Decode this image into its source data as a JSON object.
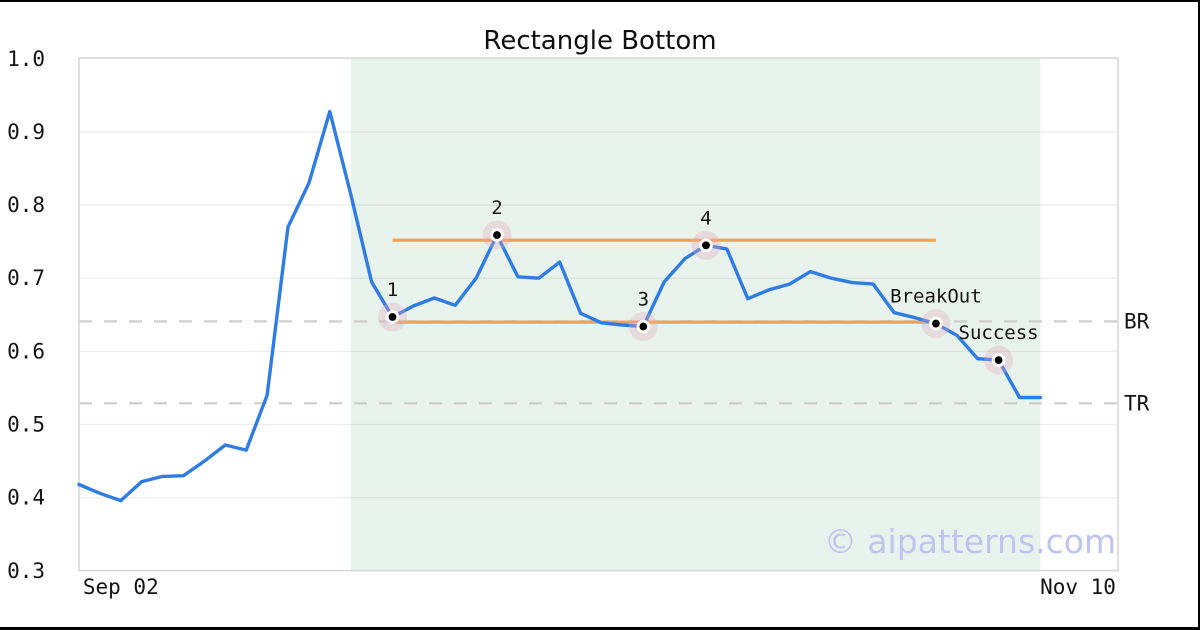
{
  "title": "Rectangle Bottom",
  "watermark": "© aipatterns.com",
  "chart_data": {
    "type": "line",
    "title": "Rectangle Bottom",
    "grid": true,
    "legend": false,
    "y_axis": {
      "min": 0.3,
      "max": 1.0,
      "ticks": [
        {
          "label": "1.0",
          "value": 1.0
        },
        {
          "label": "0.9",
          "value": 0.9
        },
        {
          "label": "0.8",
          "value": 0.8
        },
        {
          "label": "0.7",
          "value": 0.7
        },
        {
          "label": "0.6",
          "value": 0.6
        },
        {
          "label": "0.5",
          "value": 0.5
        },
        {
          "label": "0.4",
          "value": 0.4
        },
        {
          "label": "0.3",
          "value": 0.3
        }
      ]
    },
    "x_axis": {
      "ticks": [
        {
          "label": "Sep 02",
          "index": 2
        },
        {
          "label": "Nov 10",
          "index": 47.8
        }
      ]
    },
    "series": [
      {
        "name": "price",
        "values": [
          0.418,
          0.406,
          0.396,
          0.422,
          0.429,
          0.43,
          0.45,
          0.472,
          0.465,
          0.54,
          0.77,
          0.83,
          0.928,
          0.815,
          0.695,
          0.647,
          0.662,
          0.673,
          0.663,
          0.7,
          0.759,
          0.702,
          0.7,
          0.722,
          0.652,
          0.639,
          0.636,
          0.634,
          0.695,
          0.727,
          0.745,
          0.74,
          0.672,
          0.684,
          0.692,
          0.709,
          0.7,
          0.694,
          0.692,
          0.653,
          0.646,
          0.638,
          0.622,
          0.59,
          0.588,
          0.537,
          0.537
        ]
      }
    ],
    "markers": [
      {
        "label": "1",
        "index": 15,
        "value": 0.647
      },
      {
        "label": "2",
        "index": 20,
        "value": 0.759
      },
      {
        "label": "3",
        "index": 27,
        "value": 0.634
      },
      {
        "label": "4",
        "index": 30,
        "value": 0.745
      },
      {
        "label": "BreakOut",
        "index": 41,
        "value": 0.638
      },
      {
        "label": "Success",
        "index": 44,
        "value": 0.588
      }
    ],
    "pattern_lines": [
      {
        "name": "resistance",
        "value": 0.752,
        "from_index": 15,
        "to_index": 41
      },
      {
        "name": "support",
        "value": 0.64,
        "from_index": 15,
        "to_index": 41
      }
    ],
    "levels": [
      {
        "label": "BR",
        "value": 0.641
      },
      {
        "label": "TR",
        "value": 0.529
      }
    ],
    "shaded_region": {
      "from_index": 13,
      "to_index": 46
    }
  },
  "colors": {
    "price_line": "#2e7ce4",
    "pattern_line": "#f7a14e",
    "shade": "#e9f3ee",
    "level_dash": "#cdcdcd",
    "grid_line": "rgba(110,110,110,0.12)",
    "plot_border": "#d7d7d7",
    "marker_halo": "rgba(224,168,186,0.33)",
    "marker_dot": "#000000",
    "text": "#141414",
    "watermark": "#bec5f1",
    "frame": "#000000"
  }
}
